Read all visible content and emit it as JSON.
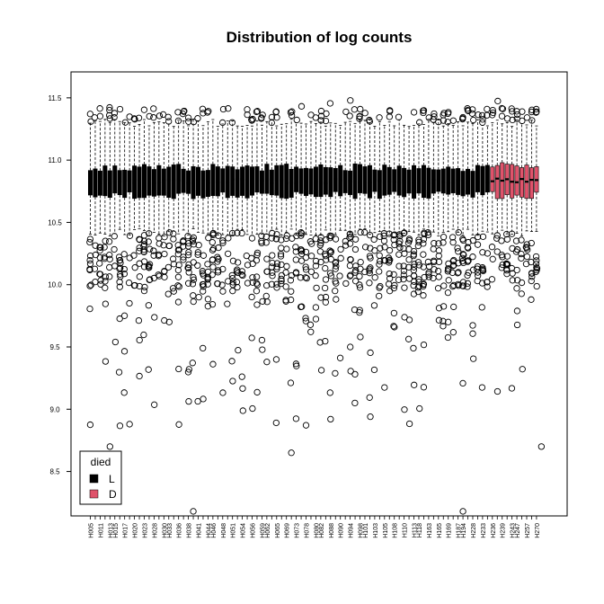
{
  "chart_data": {
    "type": "boxplot",
    "title": "Distribution of log counts",
    "xlabel": "",
    "ylabel": "",
    "ylim": [
      8.1,
      11.6
    ],
    "yticks": [
      8.5,
      9.0,
      9.5,
      10.0,
      10.5,
      11.0,
      11.5
    ],
    "ytick_labels": [
      "8.5",
      "9.0",
      "9.5",
      "10.0",
      "10.5",
      "11.0",
      "11.5"
    ],
    "grid": false,
    "colors": {
      "L": "#000000",
      "D": "#DF536B",
      "outlier": "#000000"
    },
    "legend": {
      "title": "died",
      "position": "bottom-left",
      "entries": [
        {
          "label": "L",
          "color": "#000000"
        },
        {
          "label": "D",
          "color": "#DF536B"
        }
      ]
    },
    "n_boxes": 92,
    "groups_summary": [
      {
        "group": "L",
        "box_count": 82,
        "q1": 10.72,
        "median": 10.83,
        "q3": 10.94,
        "whisker_low": 10.42,
        "whisker_high": 11.3
      },
      {
        "group": "D",
        "box_count": 10,
        "q1": 10.72,
        "median": 10.84,
        "q3": 10.95,
        "whisker_low": 10.42,
        "whisker_high": 11.3
      }
    ],
    "x_tick_labels": [
      "H005",
      "H011",
      "H013",
      "H015",
      "H017",
      "H020",
      "H023",
      "H028",
      "H030",
      "H033",
      "H036",
      "H038",
      "H041",
      "H044",
      "H046",
      "H048",
      "H051",
      "H054",
      "H056",
      "H059",
      "H062",
      "H065",
      "H069",
      "H073",
      "H078",
      "H080",
      "H082",
      "H088",
      "H090",
      "H094",
      "H098",
      "H101",
      "H103",
      "H105",
      "H108",
      "H110",
      "H113",
      "H118",
      "H163",
      "H165",
      "H169",
      "H187",
      "H194",
      "H228",
      "H233",
      "H236",
      "H239",
      "H243",
      "H247",
      "H257",
      "H270"
    ]
  }
}
